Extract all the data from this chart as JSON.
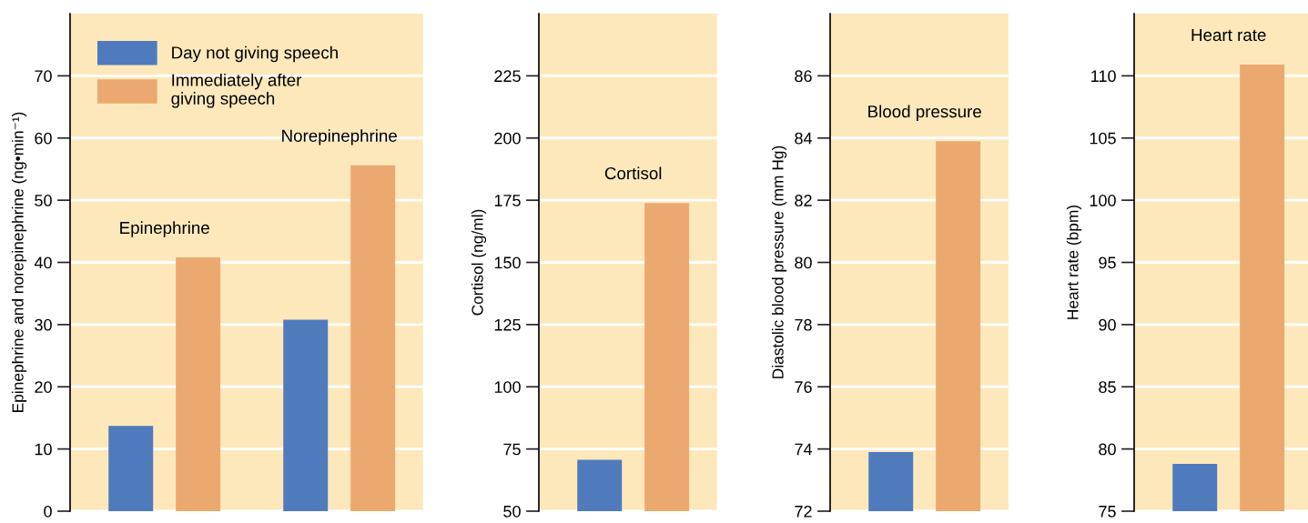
{
  "chart_data": [
    {
      "type": "bar",
      "ylabel": "Epinephrine and norepinephrine (ng•min⁻¹)",
      "categories": [
        "Epinephrine",
        "Norepinephrine"
      ],
      "series": [
        {
          "name": "Day not giving speech",
          "color": "#4f7bbd",
          "values": [
            13.7,
            30.8
          ]
        },
        {
          "name": "Immediately after\ngiving speech",
          "color": "#eba96f",
          "values": [
            40.8,
            55.6
          ]
        }
      ],
      "ylim": [
        0,
        80
      ],
      "yticks": [
        0,
        10,
        20,
        30,
        40,
        50,
        60,
        70
      ],
      "grid": "y",
      "legend": "top left"
    },
    {
      "type": "bar",
      "ylabel": "Cortisol (ng/ml)",
      "categories": [
        "Cortisol"
      ],
      "series": [
        {
          "color": "#4f7bbd",
          "values": [
            70.7
          ]
        },
        {
          "color": "#eba96f",
          "values": [
            173.9
          ]
        }
      ],
      "ylim": [
        50,
        250
      ],
      "yticks": [
        50,
        75,
        100,
        125,
        150,
        175,
        200,
        225
      ],
      "grid": "y"
    },
    {
      "type": "bar",
      "ylabel": "Diastolic blood pressure (mm Hg)",
      "categories": [
        "Blood pressure"
      ],
      "series": [
        {
          "color": "#4f7bbd",
          "values": [
            73.9
          ]
        },
        {
          "color": "#eba96f",
          "values": [
            83.9
          ]
        }
      ],
      "ylim": [
        72,
        88
      ],
      "yticks": [
        72,
        74,
        76,
        78,
        80,
        82,
        84,
        86
      ],
      "grid": "y"
    },
    {
      "type": "bar",
      "ylabel": "Heart rate (bpm)",
      "categories": [
        "Heart rate"
      ],
      "series": [
        {
          "color": "#4f7bbd",
          "values": [
            78.8
          ]
        },
        {
          "color": "#eba96f",
          "values": [
            110.9
          ]
        }
      ],
      "ylim": [
        75,
        115
      ],
      "yticks": [
        75,
        80,
        85,
        90,
        95,
        100,
        105,
        110
      ],
      "grid": "y"
    }
  ]
}
